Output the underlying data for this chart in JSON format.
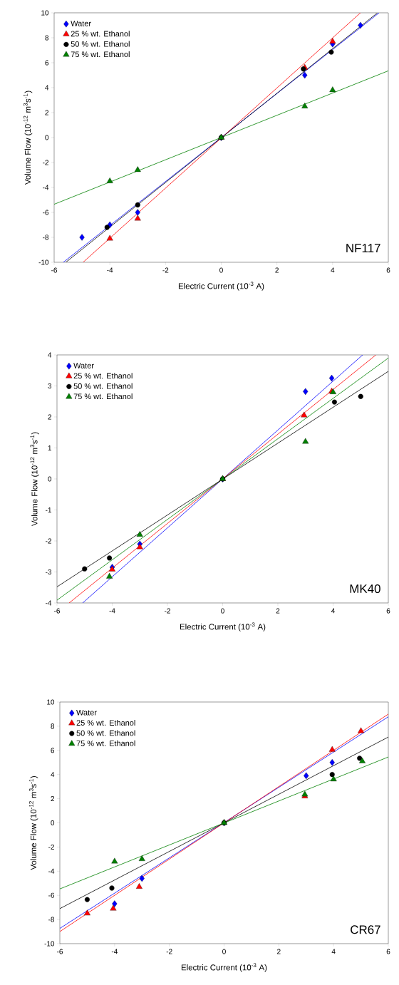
{
  "chart_data": [
    {
      "type": "scatter",
      "xlabel": "Electric Current (10$^{-3}$ A)",
      "ylabel": "Volume Flow (10$^{-12}$ m$^{3}$s$^{-1}$)",
      "xlim": [
        -6,
        6
      ],
      "ylim": [
        -10,
        10
      ],
      "xticks": [
        -6,
        -4,
        -2,
        0,
        2,
        4,
        6
      ],
      "yticks": [
        -10,
        -8,
        -6,
        -4,
        -2,
        0,
        2,
        4,
        6,
        8,
        10
      ],
      "legend": "top left",
      "annotations": [
        "NF117"
      ],
      "series": [
        {
          "name": "Water",
          "color": "#0000ff",
          "marker": "diamond",
          "x": [
            -5,
            -4,
            -3,
            0,
            3,
            4,
            5
          ],
          "values": [
            -8,
            -7,
            -6,
            0,
            5,
            7.5,
            9
          ]
        },
        {
          "name": "25 % wt. Ethanol",
          "color": "#ff0000",
          "marker": "triangle",
          "x": [
            -4,
            -3,
            0,
            3,
            4
          ],
          "values": [
            -8.1,
            -6.5,
            0,
            5.6,
            7.7
          ]
        },
        {
          "name": "50 % wt. Ethanol",
          "color": "#000000",
          "marker": "circle",
          "x": [
            -4.1,
            -3,
            0,
            2.95,
            3.95
          ],
          "values": [
            -7.2,
            -5.4,
            0,
            5.5,
            6.85
          ]
        },
        {
          "name": "75 % wt. Ethanol",
          "color": "#008000",
          "marker": "triangle",
          "x": [
            -4,
            -3,
            0,
            3,
            4
          ],
          "values": [
            -3.5,
            -2.6,
            0,
            2.5,
            3.8
          ]
        },
        {
          "type": "line",
          "color": "#0000ff",
          "x": [
            -5.67,
            5.67
          ],
          "values": [
            -10,
            10
          ]
        },
        {
          "type": "line",
          "color": "#ff0000",
          "x": [
            -4.96,
            5
          ],
          "values": [
            -10,
            10
          ]
        },
        {
          "type": "line",
          "color": "#000000",
          "x": [
            -5.58,
            5.61
          ],
          "values": [
            -10,
            10
          ]
        },
        {
          "type": "line",
          "color": "#008000",
          "x": [
            -6,
            6
          ],
          "values": [
            -5.35,
            5.35
          ]
        }
      ]
    },
    {
      "type": "scatter",
      "xlabel": "Electric Current (10$^{-3}$ A)",
      "ylabel": "Volume Flow (10$^{-12}$ m$^{3}$s$^{-1}$)",
      "xlim": [
        -6,
        6
      ],
      "ylim": [
        -4,
        4
      ],
      "xticks": [
        -6,
        -4,
        -2,
        0,
        2,
        4,
        6
      ],
      "yticks": [
        -4,
        -3,
        -2,
        -1,
        0,
        1,
        2,
        3,
        4
      ],
      "legend": "top left",
      "annotations": [
        "MK40"
      ],
      "series": [
        {
          "name": "Water",
          "color": "#0000ff",
          "marker": "diamond",
          "x": [
            -4,
            -3,
            0,
            3,
            3.95
          ],
          "values": [
            -2.85,
            -2.1,
            0,
            2.82,
            3.25
          ]
        },
        {
          "name": "25 % wt. Ethanol",
          "color": "#ff0000",
          "marker": "triangle",
          "x": [
            -4,
            -3,
            0,
            2.95,
            3.95
          ],
          "values": [
            -2.92,
            -2.2,
            0,
            2.05,
            2.82
          ]
        },
        {
          "name": "50 % wt. Ethanol",
          "color": "#000000",
          "marker": "circle",
          "x": [
            -5,
            -4.1,
            0,
            4.05,
            5
          ],
          "values": [
            -2.9,
            -2.55,
            0,
            2.48,
            2.66
          ]
        },
        {
          "name": "75 % wt. Ethanol",
          "color": "#008000",
          "marker": "triangle",
          "x": [
            -4.1,
            -3,
            0,
            3,
            4
          ],
          "values": [
            -3.15,
            -1.8,
            0,
            1.2,
            2.8
          ]
        },
        {
          "type": "line",
          "color": "#0000ff",
          "x": [
            -5.07,
            5.07
          ],
          "values": [
            -4,
            4
          ]
        },
        {
          "type": "line",
          "color": "#ff0000",
          "x": [
            -5.56,
            5.55
          ],
          "values": [
            -4,
            4
          ]
        },
        {
          "type": "line",
          "color": "#008000",
          "x": [
            -6,
            6
          ],
          "values": [
            -3.91,
            3.9
          ]
        },
        {
          "type": "line",
          "color": "#000000",
          "x": [
            -6,
            6
          ],
          "values": [
            -3.48,
            3.47
          ]
        }
      ]
    },
    {
      "type": "scatter",
      "xlabel": "Electric Current (10$^{-3}$ A)",
      "ylabel": "Volume Flow (10$^{-12}$ m$^{3}$s$^{-1}$)",
      "xlim": [
        -6,
        6
      ],
      "ylim": [
        -10,
        10
      ],
      "xticks": [
        -6,
        -4,
        -2,
        0,
        2,
        4,
        6
      ],
      "yticks": [
        -10,
        -8,
        -6,
        -4,
        -2,
        0,
        2,
        4,
        6,
        8,
        10
      ],
      "legend": "top left",
      "annotations": [
        "CR67"
      ],
      "series": [
        {
          "name": "Water",
          "color": "#0000ff",
          "marker": "diamond",
          "x": [
            -4,
            -3,
            0,
            3,
            3.95
          ],
          "values": [
            -6.7,
            -4.6,
            0,
            3.9,
            5
          ]
        },
        {
          "name": "25 % wt. Ethanol",
          "color": "#ff0000",
          "marker": "triangle",
          "x": [
            -5,
            -4.05,
            -3.1,
            0,
            2.95,
            3.95,
            5
          ],
          "values": [
            -7.5,
            -7.1,
            -5.3,
            0,
            2.2,
            6.05,
            7.6
          ]
        },
        {
          "name": "50 % wt. Ethanol",
          "color": "#000000",
          "marker": "circle",
          "x": [
            -5,
            -4.1,
            0,
            3.95,
            4.95
          ],
          "values": [
            -6.35,
            -5.4,
            0,
            4,
            5.35
          ]
        },
        {
          "name": "75 % wt. Ethanol",
          "color": "#008000",
          "marker": "triangle",
          "x": [
            -4,
            -3,
            0,
            2.95,
            4,
            5.05
          ],
          "values": [
            -3.2,
            -3,
            0,
            2.35,
            3.6,
            5.1
          ]
        },
        {
          "type": "line",
          "color": "#0000ff",
          "x": [
            -6,
            6
          ],
          "values": [
            -8.74,
            8.78
          ]
        },
        {
          "type": "line",
          "color": "#ff0000",
          "x": [
            -6,
            6
          ],
          "values": [
            -9,
            9
          ]
        },
        {
          "type": "line",
          "color": "#000000",
          "x": [
            -6,
            6
          ],
          "values": [
            -7.1,
            7.1
          ]
        },
        {
          "type": "line",
          "color": "#008000",
          "x": [
            -6,
            6
          ],
          "values": [
            -5.47,
            5.45
          ]
        }
      ]
    }
  ]
}
